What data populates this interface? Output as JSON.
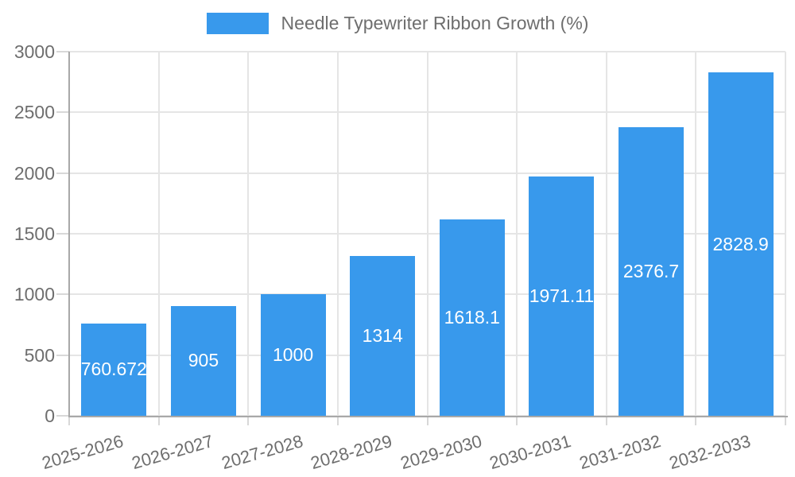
{
  "legend": {
    "label": "Needle Typewriter Ribbon Growth (%)"
  },
  "chart_data": {
    "type": "bar",
    "title": "Needle Typewriter Ribbon Growth (%)",
    "categories": [
      "2025-2026",
      "2026-2027",
      "2027-2028",
      "2028-2029",
      "2029-2030",
      "2030-2031",
      "2031-2032",
      "2032-2033"
    ],
    "values": [
      760.672,
      905,
      1000,
      1314,
      1618.1,
      1971.11,
      2376.7,
      2828.9
    ],
    "bar_labels": [
      "760.672",
      "905",
      "1000",
      "1314",
      "1618.1",
      "1971.11",
      "2376.7",
      "2828.9"
    ],
    "ylim": [
      0,
      3000
    ],
    "yticks": [
      0,
      500,
      1000,
      1500,
      2000,
      2500,
      3000
    ],
    "ytick_labels": [
      "0",
      "500",
      "1000",
      "1500",
      "2000",
      "2500",
      "3000"
    ],
    "grid": true,
    "legend_position": "top",
    "x_label_rotation_deg": -16,
    "colors": {
      "bar": "#3899EC",
      "bar_label": "#FFFFFF",
      "grid": "#E5E5E5",
      "tick": "#D8D8D8",
      "axis": "#A8A8A8",
      "text": "#6E6E6E",
      "background": "#FFFFFF"
    }
  }
}
